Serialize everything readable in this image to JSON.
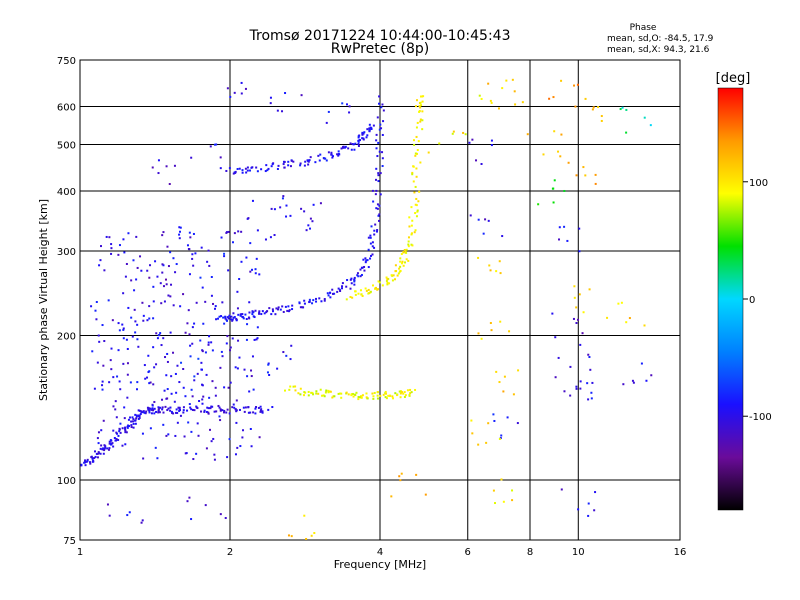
{
  "chart_data": {
    "type": "scatter",
    "title": "Tromsø 20171224 10:44:00-10:45:43",
    "subtitle": "RwPretec (8p)",
    "xlabel": "Frequency [MHz]",
    "ylabel": "Stationary phase Virtual Height [km]",
    "x_scale": "log",
    "y_scale": "log",
    "xlim": [
      1,
      16
    ],
    "ylim": [
      75,
      750
    ],
    "x_ticks": [
      1,
      2,
      4,
      6,
      8,
      10,
      16
    ],
    "y_ticks": [
      75,
      100,
      200,
      300,
      400,
      500,
      600,
      750
    ],
    "grid": true,
    "phase_box": {
      "title": "Phase",
      "line1": "mean, sd,O: -84.5, 17.9",
      "line2": "mean, sd,X:  94.3, 21.6"
    },
    "colorbar": {
      "label": "[deg]",
      "range": [
        -180,
        180
      ],
      "ticks": [
        100,
        0,
        -100
      ],
      "colormap": [
        "#000000",
        "#6a0b9a",
        "#1a10ff",
        "#0080ff",
        "#00d8ff",
        "#00e000",
        "#ffff00",
        "#ff9a00",
        "#ff0000"
      ]
    },
    "traces": [
      {
        "name": "",
        "points": [
          [
            1.0,
            108
          ],
          [
            1.05,
            110
          ],
          [
            1.1,
            115
          ],
          [
            1.15,
            118
          ],
          [
            1.2,
            125
          ],
          [
            1.25,
            130
          ],
          [
            1.3,
            135
          ],
          [
            1.35,
            140
          ],
          [
            1.4,
            140
          ],
          [
            1.5,
            140
          ],
          [
            1.6,
            140
          ],
          [
            1.8,
            140
          ],
          [
            2.0,
            140
          ],
          [
            2.2,
            140
          ],
          [
            2.4,
            140
          ]
        ],
        "phase": -100
      },
      {
        "name": "",
        "points": [
          [
            1.9,
            215
          ],
          [
            2.0,
            218
          ],
          [
            2.1,
            220
          ],
          [
            2.3,
            223
          ],
          [
            2.5,
            226
          ],
          [
            2.8,
            232
          ],
          [
            3.1,
            240
          ],
          [
            3.4,
            252
          ],
          [
            3.6,
            265
          ],
          [
            3.8,
            290
          ],
          [
            3.9,
            330
          ],
          [
            3.95,
            400
          ],
          [
            4.0,
            500
          ],
          [
            4.02,
            630
          ]
        ],
        "phase": -95
      },
      {
        "name": "",
        "points": [
          [
            2.0,
            440
          ],
          [
            2.2,
            445
          ],
          [
            2.5,
            452
          ],
          [
            2.8,
            460
          ],
          [
            3.1,
            470
          ],
          [
            3.4,
            485
          ],
          [
            3.6,
            505
          ],
          [
            3.75,
            525
          ],
          [
            3.85,
            545
          ]
        ],
        "phase": -95
      },
      {
        "name": "",
        "points": [
          [
            3.5,
            242
          ],
          [
            3.8,
            248
          ],
          [
            4.1,
            258
          ],
          [
            4.3,
            270
          ],
          [
            4.5,
            290
          ],
          [
            4.6,
            320
          ],
          [
            4.7,
            380
          ],
          [
            4.75,
            470
          ],
          [
            4.8,
            580
          ],
          [
            4.82,
            640
          ]
        ],
        "phase": 95
      },
      {
        "name": "",
        "points": [
          [
            2.6,
            155
          ],
          [
            2.9,
            152
          ],
          [
            3.2,
            151
          ],
          [
            3.5,
            150
          ],
          [
            3.8,
            150
          ],
          [
            4.1,
            150
          ],
          [
            4.4,
            151
          ],
          [
            4.7,
            152
          ]
        ],
        "phase": 90
      }
    ],
    "scatter": [
      [
        1.6,
        300,
        -100
      ],
      [
        1.7,
        320,
        -100
      ],
      [
        1.8,
        280,
        -90
      ],
      [
        2.1,
        310,
        -100
      ],
      [
        2.3,
        330,
        -100
      ],
      [
        1.5,
        250,
        -110
      ],
      [
        1.4,
        270,
        -95
      ],
      [
        1.3,
        230,
        -100
      ],
      [
        1.25,
        200,
        -100
      ],
      [
        1.35,
        180,
        -90
      ],
      [
        1.55,
        190,
        -100
      ],
      [
        1.75,
        170,
        -85
      ],
      [
        1.9,
        185,
        -100
      ],
      [
        2.2,
        175,
        -90
      ],
      [
        2.5,
        180,
        -95
      ],
      [
        1.2,
        160,
        -100
      ],
      [
        1.45,
        165,
        -110
      ],
      [
        1.65,
        150,
        -95
      ],
      [
        2.7,
        350,
        -90
      ],
      [
        3.0,
        360,
        -100
      ],
      [
        2.4,
        370,
        -95
      ],
      [
        2.0,
        640,
        -100
      ],
      [
        2.6,
        600,
        -100
      ],
      [
        3.2,
        580,
        -90
      ],
      [
        1.8,
        470,
        -100
      ],
      [
        1.5,
        440,
        -110
      ],
      [
        6.5,
        620,
        100
      ],
      [
        7.2,
        650,
        110
      ],
      [
        9.5,
        640,
        130
      ],
      [
        11,
        600,
        120
      ],
      [
        13,
        560,
        20
      ],
      [
        5.5,
        500,
        100
      ],
      [
        6.2,
        480,
        -100
      ],
      [
        8.5,
        500,
        120
      ],
      [
        10,
        430,
        130
      ],
      [
        9.8,
        320,
        -100
      ],
      [
        8.7,
        395,
        40
      ],
      [
        10,
        240,
        110
      ],
      [
        12.5,
        220,
        110
      ],
      [
        6.7,
        290,
        110
      ],
      [
        6.6,
        345,
        -100
      ],
      [
        6.8,
        200,
        110
      ],
      [
        7.1,
        160,
        110
      ],
      [
        7.2,
        130,
        -90
      ],
      [
        9.6,
        160,
        -100
      ],
      [
        10,
        180,
        -100
      ],
      [
        10.2,
        150,
        -100
      ],
      [
        13,
        165,
        -100
      ],
      [
        9.7,
        210,
        -110
      ],
      [
        10,
        90,
        -100
      ],
      [
        1.25,
        87,
        -100
      ],
      [
        1.8,
        87,
        -100
      ],
      [
        2.8,
        79,
        110
      ],
      [
        7,
        95,
        100
      ],
      [
        4.6,
        97,
        120
      ],
      [
        6.5,
        125,
        100
      ]
    ]
  }
}
